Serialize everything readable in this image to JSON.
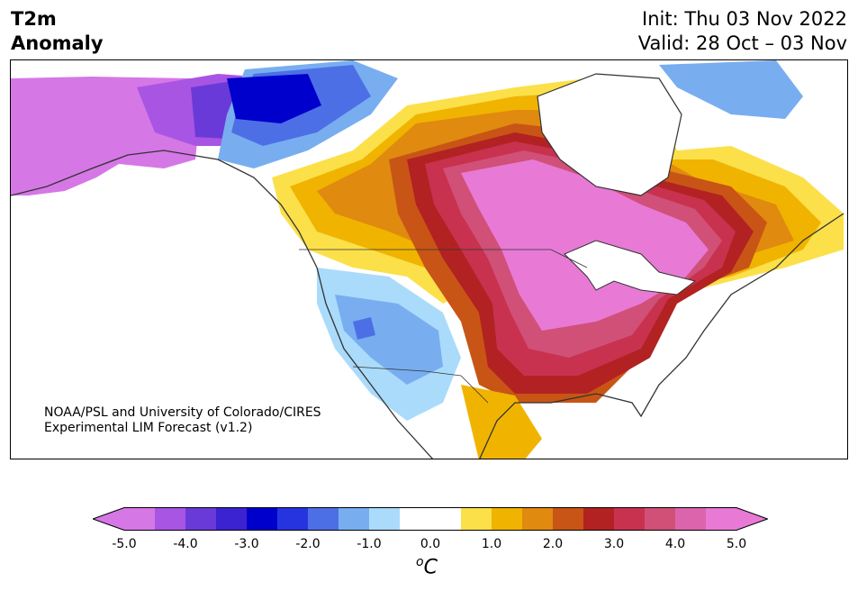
{
  "title": {
    "line1": "T2m",
    "line2": "Anomaly"
  },
  "subtitle": {
    "init": "Init: Thu 03 Nov 2022",
    "valid": "Valid: 28 Oct – 03 Nov"
  },
  "credit": {
    "line1": "NOAA/PSL and University of Colorado/CIRES",
    "line2": "Experimental LIM Forecast (v1.2)"
  },
  "colorbar": {
    "unit_sup": "o",
    "unit": "C",
    "ticks": [
      "-5.0",
      "-4.0",
      "-3.0",
      "-2.0",
      "-1.0",
      "0.0",
      "1.0",
      "2.0",
      "3.0",
      "4.0",
      "5.0"
    ],
    "colors": [
      "#d677e6",
      "#a855e3",
      "#6a3ad8",
      "#3b23d1",
      "#0000cc",
      "#2634e0",
      "#4d6fe6",
      "#78aef0",
      "#aadbfb",
      "#ffffff",
      "#ffffff",
      "#fbe04a",
      "#f0b400",
      "#e08a10",
      "#c85515",
      "#b22222",
      "#c8324f",
      "#d05078",
      "#dc64ad",
      "#e87ad6"
    ],
    "under_color": "#d677e6",
    "over_color": "#e87ad6"
  },
  "map_regions": [
    {
      "name": "alaska-west-anomaly",
      "color": "#d677e6"
    },
    {
      "name": "alaska-east-anomaly",
      "color": "#a855e3"
    },
    {
      "name": "yukon-cold-core",
      "color": "#0000cc"
    },
    {
      "name": "bc-cool-band",
      "color": "#4d6fe6"
    },
    {
      "name": "southwest-cool",
      "color": "#78aef0"
    },
    {
      "name": "canada-warm-outer",
      "color": "#f0b400"
    },
    {
      "name": "central-warm-core",
      "color": "#e87ad6"
    },
    {
      "name": "southeast-warm",
      "color": "#b22222"
    },
    {
      "name": "quebec-warm",
      "color": "#c8324f"
    }
  ]
}
